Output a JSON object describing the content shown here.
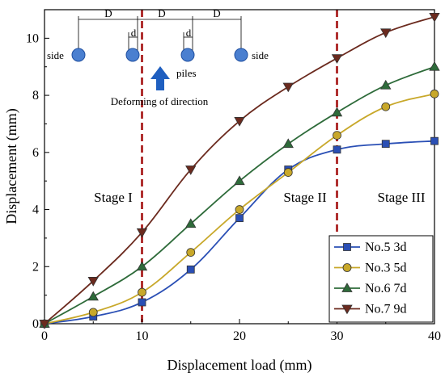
{
  "chart_data": {
    "type": "line",
    "xlabel": "Displacement load (mm)",
    "ylabel": "Displacement (mm)",
    "xlim": [
      0,
      40
    ],
    "ylim": [
      0,
      11
    ],
    "xticks": [
      "0",
      "10",
      "20",
      "30",
      "40"
    ],
    "yticks": [
      "0",
      "2",
      "4",
      "6",
      "8",
      "10"
    ],
    "grid": false,
    "legend_position": "bottom-right",
    "x": [
      0,
      5,
      10,
      15,
      20,
      25,
      30,
      35,
      40
    ],
    "series": [
      {
        "name": "No.5 3d",
        "marker": "square",
        "color": "#2a4fb5",
        "values": [
          0,
          0.25,
          0.75,
          1.9,
          3.7,
          5.4,
          6.1,
          6.3,
          6.4
        ]
      },
      {
        "name": "No.3 5d",
        "marker": "circle",
        "color": "#c8a82a",
        "values": [
          0,
          0.4,
          1.1,
          2.5,
          4.0,
          5.3,
          6.6,
          7.6,
          8.05
        ]
      },
      {
        "name": "No.6 7d",
        "marker": "triangle-up",
        "color": "#2e6b3a",
        "values": [
          0,
          0.95,
          2.0,
          3.5,
          5.0,
          6.3,
          7.4,
          8.35,
          9.0
        ]
      },
      {
        "name": "No.7 9d",
        "marker": "triangle-down",
        "color": "#6b2a1e",
        "values": [
          0,
          1.5,
          3.2,
          5.4,
          7.1,
          8.3,
          9.3,
          10.2,
          10.75
        ]
      }
    ],
    "stage_lines": [
      {
        "x": 10,
        "color": "#b03030",
        "style": "dashed"
      },
      {
        "x": 30,
        "color": "#b03030",
        "style": "dashed"
      }
    ],
    "annotations": {
      "stage1": "Stage I",
      "stage2": "Stage II",
      "stage3": "Stage III"
    },
    "schematic": {
      "spacing_label": "D",
      "diameter_label": "d",
      "side_label": "side",
      "piles_label": "piles",
      "direction_label": "Deforming of direction",
      "pile_color": "#4a7fd0",
      "arrow_color": "#1f5fc0"
    }
  }
}
